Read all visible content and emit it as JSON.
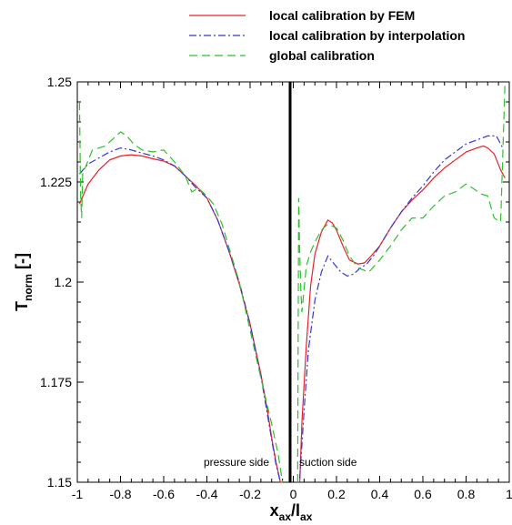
{
  "chart_data": {
    "type": "line",
    "xlabel": {
      "main": "x",
      "sub1": "ax",
      "sep": "/l",
      "sub2": "ax"
    },
    "ylabel": {
      "main": "T",
      "sub": "norm",
      "unit": " [-]"
    },
    "xlim": [
      -1,
      1
    ],
    "ylim": [
      1.15,
      1.25
    ],
    "xticks": [
      -1,
      -0.8,
      -0.6,
      -0.4,
      -0.2,
      0,
      0.2,
      0.4,
      0.6,
      0.8,
      1
    ],
    "xtick_labels": [
      "-1",
      "-0.8",
      "-0.6",
      "-0.4",
      "-0.2",
      "0",
      "0.2",
      "0.4",
      "0.6",
      "0.8",
      "1"
    ],
    "yticks": [
      1.15,
      1.175,
      1.2,
      1.225,
      1.25
    ],
    "ytick_labels": [
      "1.15",
      "1.175",
      "1.2",
      "1.225",
      "1.25"
    ],
    "grid": false,
    "legend_position": "top-right",
    "annotations": {
      "left": "pressure side",
      "right": "suction side"
    },
    "vline_x": 0,
    "series": [
      {
        "name": "local calibration by FEM",
        "color": "#e8202a",
        "dash": "solid",
        "x": [
          -0.99,
          -0.95,
          -0.9,
          -0.85,
          -0.8,
          -0.75,
          -0.7,
          -0.65,
          -0.6,
          -0.55,
          -0.5,
          -0.45,
          -0.4,
          -0.35,
          -0.3,
          -0.25,
          -0.2,
          -0.15,
          -0.12,
          -0.1,
          -0.08,
          -0.06,
          -0.05,
          0.03,
          0.04,
          0.06,
          0.08,
          0.1,
          0.13,
          0.16,
          0.18,
          0.2,
          0.23,
          0.26,
          0.3,
          0.33,
          0.36,
          0.4,
          0.45,
          0.5,
          0.55,
          0.6,
          0.65,
          0.7,
          0.75,
          0.8,
          0.85,
          0.88,
          0.9,
          0.93,
          0.96,
          0.98
        ],
        "y": [
          1.2195,
          1.2245,
          1.228,
          1.2305,
          1.2315,
          1.2318,
          1.2315,
          1.2308,
          1.2302,
          1.229,
          1.2265,
          1.224,
          1.221,
          1.2155,
          1.208,
          1.1995,
          1.1895,
          1.177,
          1.168,
          1.161,
          1.155,
          1.1495,
          1.146,
          1.15,
          1.165,
          1.184,
          1.199,
          1.207,
          1.2125,
          1.2155,
          1.2148,
          1.213,
          1.209,
          1.2055,
          1.2045,
          1.2048,
          1.2065,
          1.209,
          1.2135,
          1.2175,
          1.2205,
          1.223,
          1.226,
          1.2285,
          1.2305,
          1.2325,
          1.2335,
          1.234,
          1.2335,
          1.232,
          1.228,
          1.226
        ]
      },
      {
        "name": "local calibration by interpolation",
        "color": "#3535d8",
        "dash": "dashdot",
        "x": [
          -0.99,
          -0.95,
          -0.9,
          -0.85,
          -0.8,
          -0.75,
          -0.7,
          -0.65,
          -0.6,
          -0.55,
          -0.5,
          -0.45,
          -0.4,
          -0.35,
          -0.3,
          -0.25,
          -0.2,
          -0.15,
          -0.12,
          -0.1,
          -0.08,
          -0.06,
          0.03,
          0.05,
          0.07,
          0.1,
          0.13,
          0.16,
          0.19,
          0.22,
          0.25,
          0.28,
          0.31,
          0.34,
          0.37,
          0.4,
          0.45,
          0.5,
          0.55,
          0.6,
          0.65,
          0.7,
          0.75,
          0.8,
          0.85,
          0.9,
          0.94,
          0.97
        ],
        "y": [
          1.227,
          1.2295,
          1.231,
          1.2325,
          1.2335,
          1.233,
          1.2322,
          1.2315,
          1.2305,
          1.229,
          1.2265,
          1.2235,
          1.221,
          1.2155,
          1.208,
          1.2,
          1.1895,
          1.1765,
          1.167,
          1.1605,
          1.1545,
          1.149,
          1.151,
          1.168,
          1.183,
          1.1955,
          1.2025,
          1.2065,
          1.2045,
          1.2025,
          1.2015,
          1.202,
          1.2035,
          1.2045,
          1.2065,
          1.209,
          1.2135,
          1.2175,
          1.221,
          1.224,
          1.2275,
          1.2305,
          1.2325,
          1.2345,
          1.2355,
          1.2365,
          1.2365,
          1.2335
        ]
      },
      {
        "name": "global calibration",
        "color": "#2ec02e",
        "dash": "dashed",
        "x": [
          -0.99,
          -0.985,
          -0.98,
          -0.975,
          -0.96,
          -0.93,
          -0.9,
          -0.87,
          -0.84,
          -0.8,
          -0.77,
          -0.74,
          -0.7,
          -0.65,
          -0.6,
          -0.55,
          -0.5,
          -0.47,
          -0.44,
          -0.4,
          -0.37,
          -0.33,
          -0.3,
          -0.25,
          -0.2,
          -0.15,
          -0.1,
          -0.07,
          -0.05,
          0.02,
          0.025,
          0.03,
          0.035,
          0.04,
          0.06,
          0.08,
          0.1,
          0.13,
          0.16,
          0.2,
          0.23,
          0.26,
          0.3,
          0.35,
          0.4,
          0.45,
          0.5,
          0.55,
          0.6,
          0.65,
          0.7,
          0.75,
          0.8,
          0.83,
          0.87,
          0.9,
          0.93,
          0.96,
          0.97,
          0.98
        ],
        "y": [
          1.245,
          1.222,
          1.216,
          1.227,
          1.229,
          1.233,
          1.2335,
          1.234,
          1.2355,
          1.2375,
          1.2365,
          1.2345,
          1.233,
          1.2325,
          1.233,
          1.23,
          1.2265,
          1.2225,
          1.2235,
          1.2215,
          1.2195,
          1.2145,
          1.209,
          1.2,
          1.188,
          1.176,
          1.1645,
          1.157,
          1.1475,
          1.147,
          1.221,
          1.207,
          1.198,
          1.1925,
          1.204,
          1.2075,
          1.21,
          1.213,
          1.2145,
          1.2135,
          1.2105,
          1.2065,
          1.2035,
          1.2025,
          1.2055,
          1.209,
          1.213,
          1.216,
          1.216,
          1.219,
          1.2215,
          1.2225,
          1.2245,
          1.2235,
          1.222,
          1.2215,
          1.216,
          1.215,
          1.232,
          1.25
        ]
      }
    ]
  }
}
